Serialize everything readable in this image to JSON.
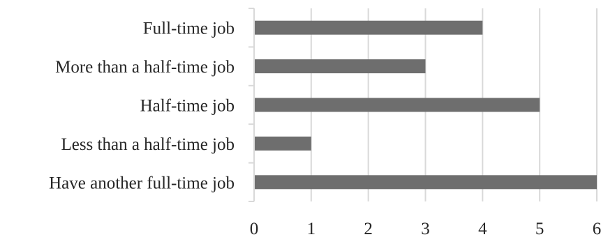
{
  "chart_data": {
    "type": "bar",
    "orientation": "horizontal",
    "categories": [
      "Full-time job",
      "More than a half-time job",
      "Half-time job",
      "Less than a half-time job",
      "Have another full-time job"
    ],
    "values": [
      4,
      3,
      5,
      1,
      6
    ],
    "xlim": [
      0,
      6
    ],
    "xticks": [
      "0",
      "1",
      "2",
      "3",
      "4",
      "5",
      "6"
    ],
    "grid": "vertical",
    "bar_color": "#6e6e6e",
    "grid_color": "#d9d9d9"
  }
}
